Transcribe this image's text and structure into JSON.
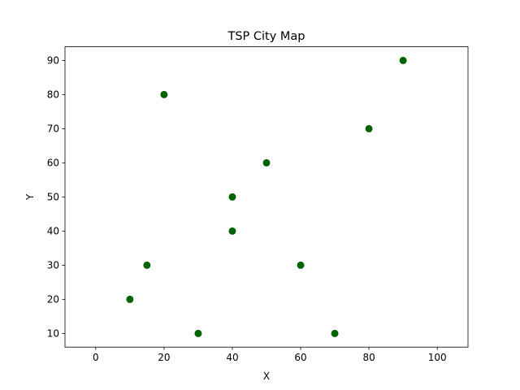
{
  "chart_data": {
    "type": "scatter",
    "title": "TSP City Map",
    "xlabel": "X",
    "ylabel": "Y",
    "xlim": [
      -9,
      109
    ],
    "ylim": [
      6,
      94
    ],
    "xticks": [
      0,
      20,
      40,
      60,
      80,
      100
    ],
    "yticks": [
      10,
      20,
      30,
      40,
      50,
      60,
      70,
      80,
      90
    ],
    "grid": false,
    "marker_color": "#006400",
    "points": [
      {
        "x": 10,
        "y": 20
      },
      {
        "x": 15,
        "y": 30
      },
      {
        "x": 20,
        "y": 80
      },
      {
        "x": 30,
        "y": 10
      },
      {
        "x": 40,
        "y": 40
      },
      {
        "x": 40,
        "y": 50
      },
      {
        "x": 50,
        "y": 60
      },
      {
        "x": 60,
        "y": 30
      },
      {
        "x": 70,
        "y": 10
      },
      {
        "x": 80,
        "y": 70
      },
      {
        "x": 90,
        "y": 90
      }
    ]
  }
}
